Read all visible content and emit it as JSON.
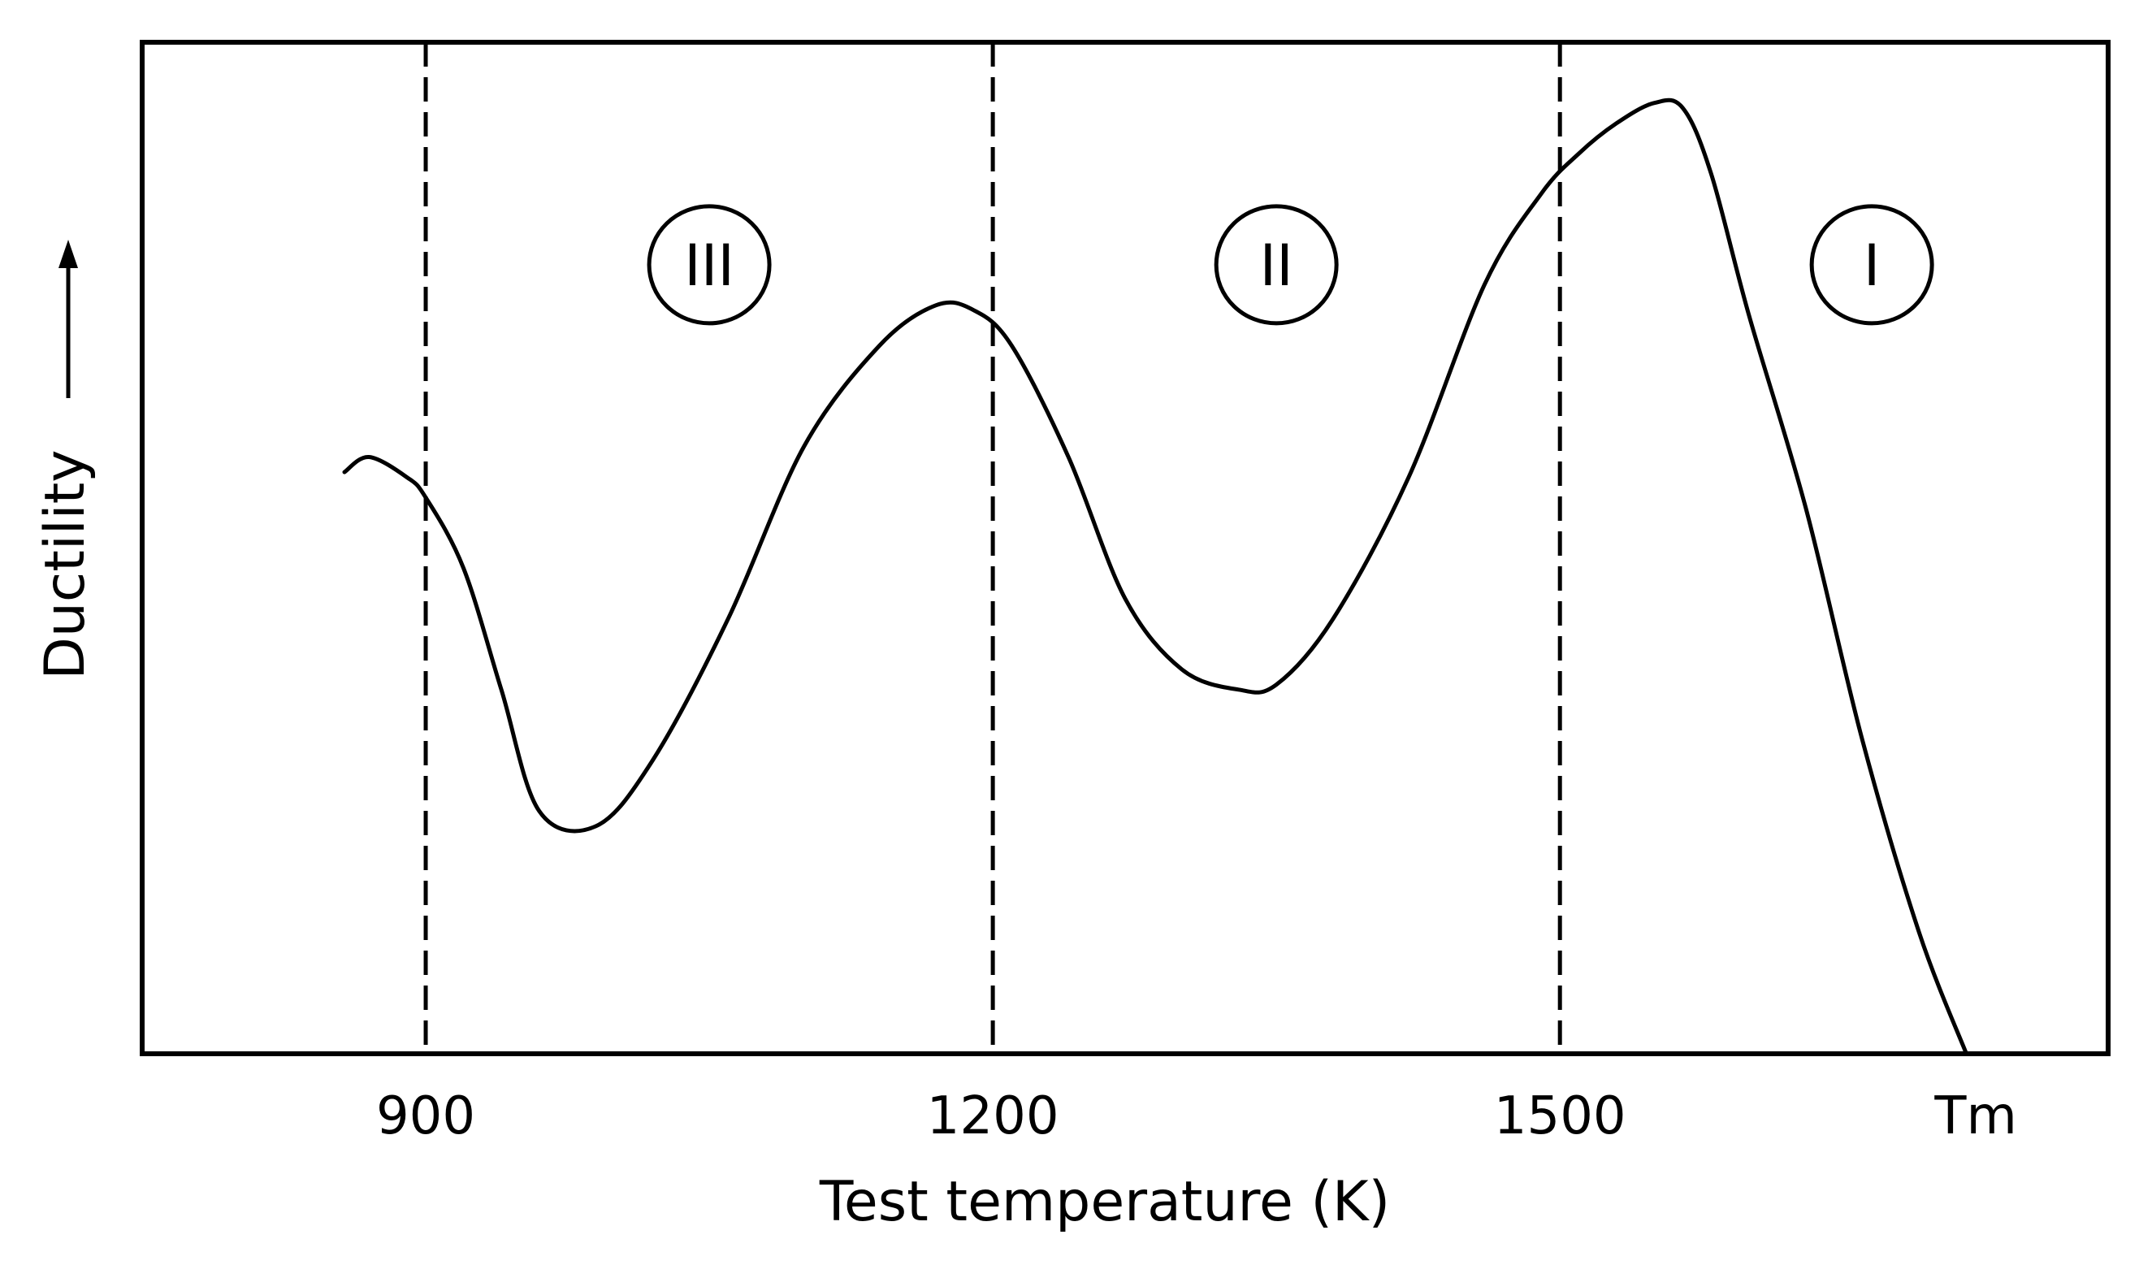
{
  "chart_data": {
    "type": "line",
    "title": "",
    "xlabel": "Test temperature  (K)",
    "ylabel": "Ductility",
    "ylabel_arrow": "up-arrow-icon",
    "xlim": [
      750,
      1790
    ],
    "ylim": [
      0,
      100
    ],
    "grid": false,
    "legend": "none",
    "x_ticks": [
      {
        "value": 900,
        "label": "900"
      },
      {
        "value": 1200,
        "label": "1200"
      },
      {
        "value": 1500,
        "label": "1500"
      },
      {
        "value": 1720,
        "label": "Tm"
      }
    ],
    "vertical_dashed_lines": [
      900,
      1200,
      1500
    ],
    "regions": [
      {
        "label": "III",
        "x": 1050,
        "y": 78
      },
      {
        "label": "II",
        "x": 1350,
        "y": 78
      },
      {
        "label": "I",
        "x": 1665,
        "y": 78
      }
    ],
    "series": [
      {
        "name": "Ductility",
        "x": [
          857,
          870,
          890,
          900,
          920,
          940,
          960,
          990,
          1020,
          1060,
          1100,
          1140,
          1170,
          1190,
          1210,
          1240,
          1270,
          1300,
          1330,
          1350,
          1380,
          1420,
          1460,
          1490,
          1510,
          1530,
          1550,
          1565,
          1580,
          1600,
          1630,
          1660,
          1690,
          1715
        ],
        "y": [
          57.5,
          59,
          57,
          55,
          48,
          36,
          24,
          22.5,
          29,
          43,
          60,
          70,
          74,
          73.5,
          70,
          59,
          45,
          38,
          36,
          36.5,
          43,
          57,
          76,
          85,
          89,
          92,
          94,
          93.5,
          87,
          73,
          54,
          31,
          12,
          0
        ]
      }
    ]
  }
}
